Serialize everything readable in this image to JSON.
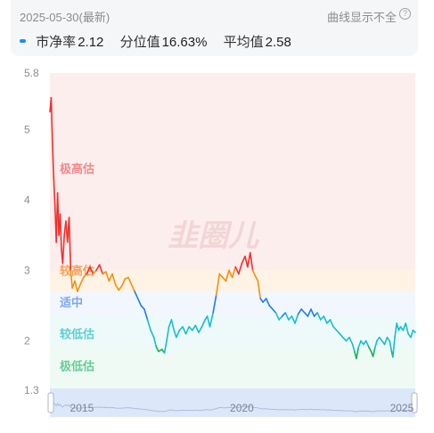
{
  "header": {
    "date": "2025-05-30(最新)",
    "note": "曲线显示不全",
    "help_icon": "question-circle-icon",
    "stats": [
      {
        "label": "市净率",
        "value": "2.12"
      },
      {
        "label": "分位值",
        "value": "16.63%"
      },
      {
        "label": "平均值",
        "value": "2.58"
      }
    ]
  },
  "watermark": "韭圈儿",
  "chart_data": {
    "type": "line",
    "yaxis": {
      "min": 1.3,
      "max": 5.8,
      "ticks": [
        "5.8",
        "5",
        "4",
        "3",
        "2",
        "1.3"
      ]
    },
    "xaxis": {
      "start": 2014.0,
      "end": 2025.42,
      "ticks": [
        {
          "label": "2015",
          "x": 2015.0
        },
        {
          "label": "2020",
          "x": 2020.0
        },
        {
          "label": "2025",
          "x": 2025.0
        }
      ]
    },
    "zones": [
      {
        "label": "极高估",
        "from": 3.0,
        "to": 5.8,
        "color": "#fdeeee",
        "text_color": "#ee8a8a",
        "label_y": 4.45
      },
      {
        "label": "较高估",
        "from": 2.7,
        "to": 3.0,
        "color": "#fff3e6",
        "text_color": "#f5a25c",
        "label_y": 3.0
      },
      {
        "label": "适中",
        "from": 2.35,
        "to": 2.7,
        "color": "#f2f6ff",
        "text_color": "#7aa7f0",
        "label_y": 2.55
      },
      {
        "label": "较低估",
        "from": 1.9,
        "to": 2.35,
        "color": "#eefaf9",
        "text_color": "#5ecfd3",
        "label_y": 2.1
      },
      {
        "label": "极低估",
        "from": 1.3,
        "to": 1.9,
        "color": "#eefaf3",
        "text_color": "#66cc99",
        "label_y": 1.65
      }
    ],
    "series_colors": {
      "very_high": "#f0302c",
      "high": "#f29010",
      "mid": "#1a7ff0",
      "low": "#19bcd0",
      "very_low": "#18b060"
    },
    "series": [
      {
        "x": 2014.0,
        "y": 5.25
      },
      {
        "x": 2014.04,
        "y": 5.45
      },
      {
        "x": 2014.08,
        "y": 4.8
      },
      {
        "x": 2014.12,
        "y": 4.3
      },
      {
        "x": 2014.16,
        "y": 3.9
      },
      {
        "x": 2014.2,
        "y": 3.4
      },
      {
        "x": 2014.24,
        "y": 4.1
      },
      {
        "x": 2014.28,
        "y": 3.5
      },
      {
        "x": 2014.32,
        "y": 3.8
      },
      {
        "x": 2014.36,
        "y": 3.3
      },
      {
        "x": 2014.4,
        "y": 3.1
      },
      {
        "x": 2014.45,
        "y": 3.5
      },
      {
        "x": 2014.5,
        "y": 3.7
      },
      {
        "x": 2014.55,
        "y": 3.4
      },
      {
        "x": 2014.6,
        "y": 3.75
      },
      {
        "x": 2014.65,
        "y": 3.0
      },
      {
        "x": 2014.7,
        "y": 2.75
      },
      {
        "x": 2014.78,
        "y": 2.85
      },
      {
        "x": 2014.86,
        "y": 2.7
      },
      {
        "x": 2014.95,
        "y": 2.8
      },
      {
        "x": 2015.05,
        "y": 2.9
      },
      {
        "x": 2015.15,
        "y": 2.95
      },
      {
        "x": 2015.25,
        "y": 3.05
      },
      {
        "x": 2015.35,
        "y": 2.95
      },
      {
        "x": 2015.45,
        "y": 3.0
      },
      {
        "x": 2015.55,
        "y": 3.08
      },
      {
        "x": 2015.65,
        "y": 2.95
      },
      {
        "x": 2015.75,
        "y": 2.98
      },
      {
        "x": 2015.85,
        "y": 2.85
      },
      {
        "x": 2015.95,
        "y": 2.95
      },
      {
        "x": 2016.05,
        "y": 2.8
      },
      {
        "x": 2016.15,
        "y": 2.72
      },
      {
        "x": 2016.25,
        "y": 2.78
      },
      {
        "x": 2016.35,
        "y": 2.88
      },
      {
        "x": 2016.45,
        "y": 2.9
      },
      {
        "x": 2016.55,
        "y": 2.8
      },
      {
        "x": 2016.65,
        "y": 2.7
      },
      {
        "x": 2016.75,
        "y": 2.6
      },
      {
        "x": 2016.85,
        "y": 2.5
      },
      {
        "x": 2016.95,
        "y": 2.45
      },
      {
        "x": 2017.05,
        "y": 2.3
      },
      {
        "x": 2017.15,
        "y": 2.15
      },
      {
        "x": 2017.25,
        "y": 2.05
      },
      {
        "x": 2017.32,
        "y": 1.92
      },
      {
        "x": 2017.4,
        "y": 1.85
      },
      {
        "x": 2017.5,
        "y": 1.88
      },
      {
        "x": 2017.58,
        "y": 1.83
      },
      {
        "x": 2017.65,
        "y": 2.0
      },
      {
        "x": 2017.72,
        "y": 2.2
      },
      {
        "x": 2017.8,
        "y": 2.3
      },
      {
        "x": 2017.88,
        "y": 2.15
      },
      {
        "x": 2017.95,
        "y": 2.05
      },
      {
        "x": 2018.05,
        "y": 2.15
      },
      {
        "x": 2018.15,
        "y": 2.2
      },
      {
        "x": 2018.25,
        "y": 2.1
      },
      {
        "x": 2018.35,
        "y": 2.2
      },
      {
        "x": 2018.45,
        "y": 2.15
      },
      {
        "x": 2018.55,
        "y": 2.22
      },
      {
        "x": 2018.65,
        "y": 2.12
      },
      {
        "x": 2018.75,
        "y": 2.2
      },
      {
        "x": 2018.85,
        "y": 2.3
      },
      {
        "x": 2018.92,
        "y": 2.35
      },
      {
        "x": 2019.0,
        "y": 2.2
      },
      {
        "x": 2019.1,
        "y": 2.4
      },
      {
        "x": 2019.2,
        "y": 2.65
      },
      {
        "x": 2019.3,
        "y": 2.95
      },
      {
        "x": 2019.4,
        "y": 2.9
      },
      {
        "x": 2019.5,
        "y": 2.85
      },
      {
        "x": 2019.6,
        "y": 3.0
      },
      {
        "x": 2019.7,
        "y": 2.9
      },
      {
        "x": 2019.8,
        "y": 3.05
      },
      {
        "x": 2019.9,
        "y": 2.95
      },
      {
        "x": 2020.0,
        "y": 3.1
      },
      {
        "x": 2020.1,
        "y": 3.2
      },
      {
        "x": 2020.18,
        "y": 3.05
      },
      {
        "x": 2020.26,
        "y": 3.25
      },
      {
        "x": 2020.34,
        "y": 3.0
      },
      {
        "x": 2020.42,
        "y": 2.92
      },
      {
        "x": 2020.5,
        "y": 2.85
      },
      {
        "x": 2020.58,
        "y": 2.6
      },
      {
        "x": 2020.66,
        "y": 2.55
      },
      {
        "x": 2020.76,
        "y": 2.6
      },
      {
        "x": 2020.86,
        "y": 2.5
      },
      {
        "x": 2020.96,
        "y": 2.45
      },
      {
        "x": 2021.06,
        "y": 2.4
      },
      {
        "x": 2021.16,
        "y": 2.3
      },
      {
        "x": 2021.26,
        "y": 2.35
      },
      {
        "x": 2021.36,
        "y": 2.4
      },
      {
        "x": 2021.46,
        "y": 2.3
      },
      {
        "x": 2021.56,
        "y": 2.35
      },
      {
        "x": 2021.66,
        "y": 2.25
      },
      {
        "x": 2021.76,
        "y": 2.38
      },
      {
        "x": 2021.86,
        "y": 2.45
      },
      {
        "x": 2021.96,
        "y": 2.4
      },
      {
        "x": 2022.06,
        "y": 2.35
      },
      {
        "x": 2022.16,
        "y": 2.45
      },
      {
        "x": 2022.26,
        "y": 2.35
      },
      {
        "x": 2022.36,
        "y": 2.4
      },
      {
        "x": 2022.46,
        "y": 2.3
      },
      {
        "x": 2022.56,
        "y": 2.35
      },
      {
        "x": 2022.66,
        "y": 2.25
      },
      {
        "x": 2022.76,
        "y": 2.3
      },
      {
        "x": 2022.86,
        "y": 2.2
      },
      {
        "x": 2022.96,
        "y": 2.15
      },
      {
        "x": 2023.06,
        "y": 2.1
      },
      {
        "x": 2023.16,
        "y": 2.05
      },
      {
        "x": 2023.26,
        "y": 2.0
      },
      {
        "x": 2023.36,
        "y": 2.05
      },
      {
        "x": 2023.46,
        "y": 1.95
      },
      {
        "x": 2023.52,
        "y": 1.85
      },
      {
        "x": 2023.58,
        "y": 1.75
      },
      {
        "x": 2023.64,
        "y": 1.9
      },
      {
        "x": 2023.72,
        "y": 2.0
      },
      {
        "x": 2023.8,
        "y": 1.95
      },
      {
        "x": 2023.88,
        "y": 2.0
      },
      {
        "x": 2023.96,
        "y": 1.92
      },
      {
        "x": 2024.04,
        "y": 1.85
      },
      {
        "x": 2024.1,
        "y": 1.78
      },
      {
        "x": 2024.16,
        "y": 1.9
      },
      {
        "x": 2024.22,
        "y": 2.0
      },
      {
        "x": 2024.3,
        "y": 2.05
      },
      {
        "x": 2024.38,
        "y": 2.0
      },
      {
        "x": 2024.46,
        "y": 1.95
      },
      {
        "x": 2024.54,
        "y": 2.05
      },
      {
        "x": 2024.62,
        "y": 2.0
      },
      {
        "x": 2024.68,
        "y": 1.85
      },
      {
        "x": 2024.72,
        "y": 1.77
      },
      {
        "x": 2024.78,
        "y": 2.05
      },
      {
        "x": 2024.84,
        "y": 2.25
      },
      {
        "x": 2024.9,
        "y": 2.15
      },
      {
        "x": 2024.96,
        "y": 2.2
      },
      {
        "x": 2025.04,
        "y": 2.15
      },
      {
        "x": 2025.12,
        "y": 2.25
      },
      {
        "x": 2025.2,
        "y": 2.1
      },
      {
        "x": 2025.28,
        "y": 2.05
      },
      {
        "x": 2025.35,
        "y": 2.15
      },
      {
        "x": 2025.42,
        "y": 2.12
      }
    ]
  }
}
